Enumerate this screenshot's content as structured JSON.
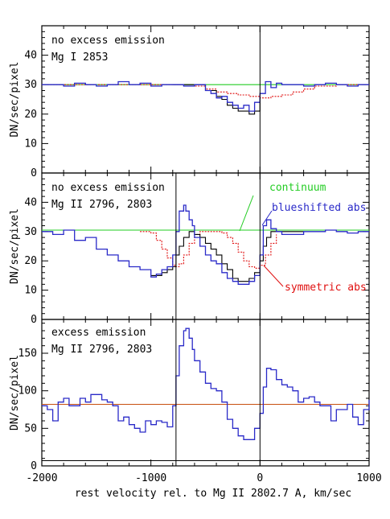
{
  "chart_data": {
    "type": "line",
    "shared_xlabel": "rest velocity rel. to Mg II 2802.7 A, km/sec",
    "x_ticks": [
      "-2000",
      "-1000",
      "0",
      "1000"
    ],
    "xlim": [
      -2000,
      1000
    ],
    "vertical_lines_x": [
      {
        "panel": 0,
        "x": [
          0
        ]
      },
      {
        "panel": 1,
        "x": [
          -770,
          0
        ]
      },
      {
        "panel": 2,
        "x": [
          -770,
          0
        ]
      }
    ],
    "colors": {
      "data": "#2a2ac8",
      "model": "#000000",
      "symmetric": "#e01010",
      "continuum": "#22cc22",
      "level": "#c85010",
      "frame": "#000000"
    },
    "panels": [
      {
        "ylabel": "DN/sec/pixel",
        "ylim": [
          0,
          50
        ],
        "y_ticks": [
          "0",
          "10",
          "20",
          "30",
          "40"
        ],
        "annotation_line1": "no excess emission",
        "annotation_line2": "Mg I 2853",
        "series": [
          {
            "key": "data",
            "color": "#2a2ac8",
            "x": [
              -2000,
              -1900,
              -1800,
              -1700,
              -1600,
              -1500,
              -1400,
              -1300,
              -1200,
              -1100,
              -1000,
              -900,
              -800,
              -700,
              -600,
              -500,
              -450,
              -400,
              -350,
              -300,
              -250,
              -200,
              -150,
              -100,
              -50,
              0,
              50,
              100,
              150,
              200,
              300,
              400,
              500,
              600,
              700,
              800,
              900,
              1000
            ],
            "y": [
              30,
              30,
              29.5,
              30.5,
              30,
              29.5,
              30,
              31,
              30,
              30.5,
              29.5,
              30,
              30,
              29.5,
              30,
              28,
              27,
              25.5,
              26,
              24,
              23,
              22,
              23,
              21,
              24,
              27,
              31,
              29,
              30.5,
              30,
              30,
              29.5,
              30,
              30.5,
              30,
              29.5,
              30,
              30
            ]
          },
          {
            "key": "model",
            "color": "#000000",
            "x": [
              -800,
              -600,
              -500,
              -400,
              -350,
              -300,
              -250,
              -200,
              -150,
              -100,
              -50,
              0
            ],
            "y": [
              30,
              30,
              28,
              26,
              25,
              23,
              22,
              21,
              21,
              20,
              21,
              26
            ]
          },
          {
            "key": "symmetric",
            "color": "#e01010",
            "x": [
              -2000,
              -1000,
              -700,
              -500,
              -400,
              -300,
              -200,
              -100,
              0,
              100,
              200,
              300,
              400,
              500,
              700,
              1000
            ],
            "y": [
              30,
              30,
              29.5,
              28.5,
              27.5,
              27,
              26.5,
              26,
              25.5,
              26,
              26.5,
              27.5,
              28.5,
              29.5,
              30,
              30
            ]
          },
          {
            "key": "continuum",
            "color": "#22cc22",
            "x": [
              -2000,
              1000
            ],
            "y": [
              30,
              30
            ]
          }
        ]
      },
      {
        "ylabel": "DN/sec/pixel",
        "ylim": [
          0,
          50
        ],
        "y_ticks": [
          "0",
          "10",
          "20",
          "30",
          "40"
        ],
        "annotation_line1": "no excess emission",
        "annotation_line2": "Mg II 2796, 2803",
        "label_continuum": "continuum",
        "label_blueshifted": "blueshifted abs",
        "label_symmetric": "symmetric abs",
        "series": [
          {
            "key": "data",
            "color": "#2a2ac8",
            "x": [
              -2000,
              -1900,
              -1800,
              -1700,
              -1600,
              -1500,
              -1400,
              -1300,
              -1200,
              -1100,
              -1000,
              -950,
              -900,
              -850,
              -800,
              -770,
              -740,
              -700,
              -680,
              -650,
              -620,
              -600,
              -550,
              -500,
              -450,
              -400,
              -350,
              -300,
              -250,
              -200,
              -150,
              -100,
              -50,
              0,
              30,
              60,
              100,
              150,
              200,
              300,
              400,
              500,
              600,
              700,
              800,
              900,
              1000
            ],
            "y": [
              30,
              29,
              30.5,
              27,
              28,
              24,
              22,
              20,
              18,
              17,
              14.5,
              15.5,
              17,
              18,
              22,
              30,
              37,
              39,
              37,
              34,
              32,
              28,
              25,
              22,
              20,
              19,
              16,
              14,
              13,
              12,
              12,
              13,
              15,
              22,
              32,
              34,
              31,
              30,
              29,
              29,
              30,
              30,
              30.5,
              30,
              29.5,
              30,
              30
            ]
          },
          {
            "key": "model",
            "color": "#000000",
            "x": [
              -1000,
              -900,
              -850,
              -800,
              -770,
              -740,
              -700,
              -650,
              -600,
              -550,
              -500,
              -450,
              -400,
              -350,
              -300,
              -250,
              -200,
              -150,
              -100,
              -50,
              0,
              30,
              60,
              100,
              200,
              400
            ],
            "y": [
              15,
              16,
              17,
              18,
              22,
              25,
              28,
              30,
              29,
              28,
              26,
              24,
              22,
              19,
              17,
              14,
              13,
              13,
              14,
              16,
              20,
              25,
              28,
              30,
              30,
              30
            ]
          },
          {
            "key": "symmetric",
            "color": "#e01010",
            "x": [
              -1100,
              -1000,
              -950,
              -900,
              -850,
              -800,
              -770,
              -740,
              -700,
              -650,
              -600,
              -550,
              -500,
              -400,
              -350,
              -300,
              -250,
              -200,
              -150,
              -100,
              -50,
              0,
              50,
              100,
              150
            ],
            "y": [
              30,
              29.5,
              27,
              24,
              21,
              18.5,
              18,
              19,
              22,
              26,
              29,
              30,
              30,
              30,
              29.5,
              28,
              26,
              23,
              20,
              18,
              17.5,
              18.5,
              22,
              26,
              29
            ]
          },
          {
            "key": "continuum",
            "color": "#22cc22",
            "x": [
              -2000,
              1000
            ],
            "y": [
              30.5,
              30.5
            ]
          }
        ]
      },
      {
        "ylabel": "DN/sec/pixel",
        "ylim": [
          0,
          195
        ],
        "y_ticks": [
          "0",
          "50",
          "100",
          "150"
        ],
        "annotation_line1": "excess emission",
        "annotation_line2": "Mg II 2796, 2803",
        "series": [
          {
            "key": "data",
            "color": "#2a2ac8",
            "x": [
              -2000,
              -1950,
              -1900,
              -1850,
              -1800,
              -1750,
              -1700,
              -1650,
              -1600,
              -1550,
              -1500,
              -1450,
              -1400,
              -1350,
              -1300,
              -1250,
              -1200,
              -1150,
              -1100,
              -1050,
              -1000,
              -950,
              -900,
              -850,
              -800,
              -770,
              -740,
              -700,
              -680,
              -650,
              -620,
              -600,
              -550,
              -500,
              -450,
              -400,
              -350,
              -300,
              -250,
              -200,
              -150,
              -100,
              -50,
              0,
              30,
              60,
              100,
              150,
              200,
              250,
              300,
              350,
              400,
              450,
              500,
              550,
              600,
              650,
              700,
              750,
              800,
              850,
              900,
              950,
              1000
            ],
            "y": [
              80,
              75,
              60,
              85,
              90,
              80,
              80,
              90,
              85,
              95,
              95,
              88,
              85,
              80,
              60,
              65,
              55,
              50,
              45,
              60,
              55,
              60,
              58,
              52,
              80,
              120,
              160,
              180,
              183,
              170,
              155,
              140,
              125,
              110,
              103,
              100,
              85,
              62,
              50,
              40,
              35,
              35,
              50,
              70,
              105,
              130,
              128,
              115,
              108,
              105,
              100,
              85,
              90,
              92,
              85,
              80,
              80,
              60,
              75,
              75,
              82,
              65,
              55,
              75,
              88
            ]
          },
          {
            "key": "level",
            "color": "#c85010",
            "x": [
              -2000,
              1000
            ],
            "y": [
              82,
              82
            ]
          },
          {
            "key": "baseline",
            "color": "#000000",
            "x": [
              -2000,
              1000
            ],
            "y": [
              7,
              7
            ]
          }
        ]
      }
    ]
  }
}
